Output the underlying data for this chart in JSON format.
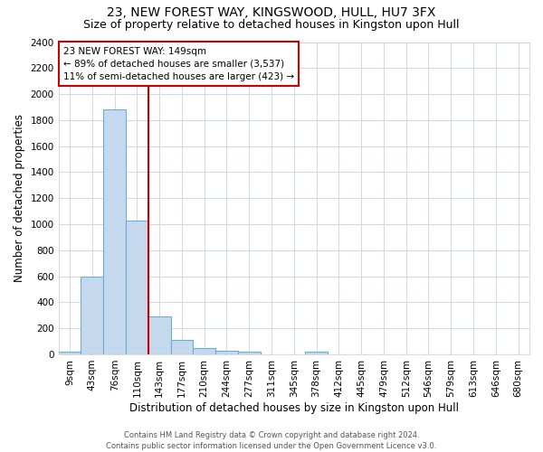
{
  "title": "23, NEW FOREST WAY, KINGSWOOD, HULL, HU7 3FX",
  "subtitle": "Size of property relative to detached houses in Kingston upon Hull",
  "xlabel": "Distribution of detached houses by size in Kingston upon Hull",
  "ylabel": "Number of detached properties",
  "bar_labels": [
    "9sqm",
    "43sqm",
    "76sqm",
    "110sqm",
    "143sqm",
    "177sqm",
    "210sqm",
    "244sqm",
    "277sqm",
    "311sqm",
    "345sqm",
    "378sqm",
    "412sqm",
    "445sqm",
    "479sqm",
    "512sqm",
    "546sqm",
    "579sqm",
    "613sqm",
    "646sqm",
    "680sqm"
  ],
  "bar_values": [
    20,
    600,
    1880,
    1030,
    290,
    110,
    45,
    25,
    20,
    0,
    0,
    20,
    0,
    0,
    0,
    0,
    0,
    0,
    0,
    0,
    0
  ],
  "bar_color": "#c5d9ee",
  "bar_edge_color": "#6aaed6",
  "vline_color": "#cc0000",
  "vline_position": 4,
  "annotation_line1": "23 NEW FOREST WAY: 149sqm",
  "annotation_line2": "← 89% of detached houses are smaller (3,537)",
  "annotation_line3": "11% of semi-detached houses are larger (423) →",
  "annotation_box_color": "#ffffff",
  "annotation_box_edge": "#cc0000",
  "ylim": [
    0,
    2400
  ],
  "yticks": [
    0,
    200,
    400,
    600,
    800,
    1000,
    1200,
    1400,
    1600,
    1800,
    2000,
    2200,
    2400
  ],
  "background_color": "#ffffff",
  "plot_bg_color": "#ffffff",
  "grid_color": "#d0d8e8",
  "footer_line1": "Contains HM Land Registry data © Crown copyright and database right 2024.",
  "footer_line2": "Contains public sector information licensed under the Open Government Licence v3.0.",
  "title_fontsize": 10,
  "subtitle_fontsize": 9,
  "xlabel_fontsize": 8.5,
  "ylabel_fontsize": 8.5,
  "tick_fontsize": 7.5,
  "footer_fontsize": 6
}
